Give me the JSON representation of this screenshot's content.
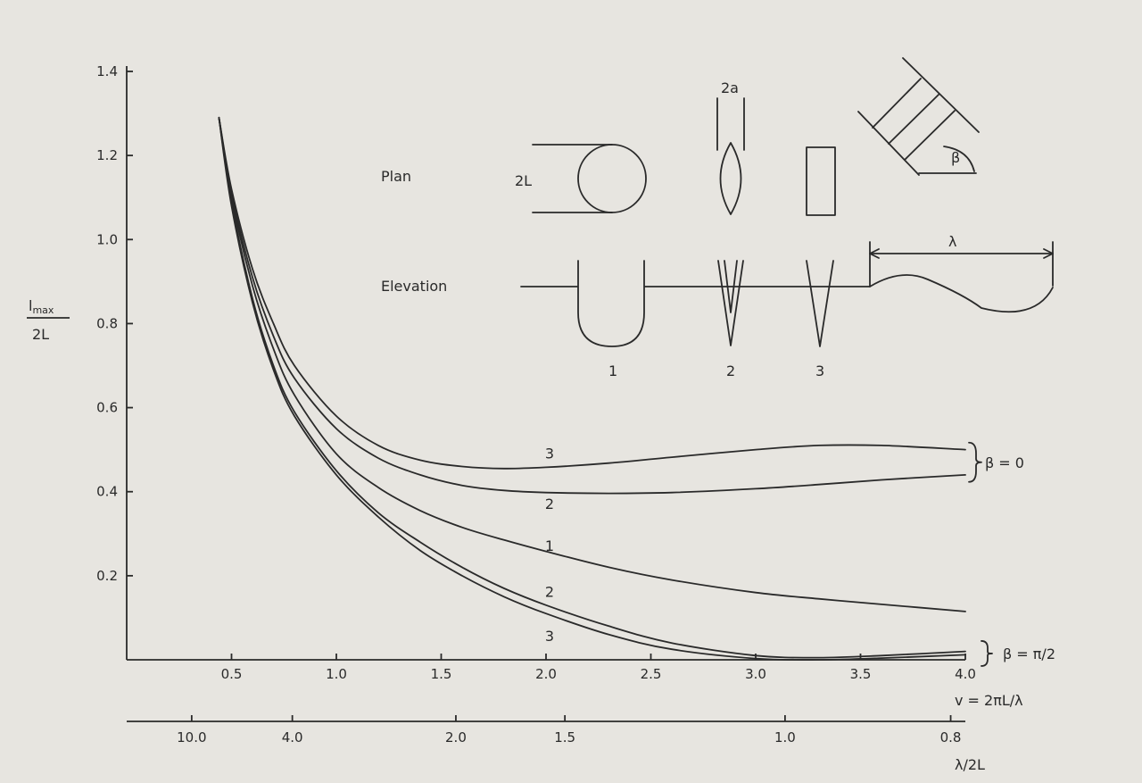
{
  "chart_data": {
    "type": "line",
    "xlabel": "v = 2πL/λ",
    "x2label": "λ/2L",
    "ylabel": "l_max / 2L",
    "ylabel_parts": {
      "num": "l",
      "sub": "max",
      "den": "2L"
    },
    "xlim": [
      0,
      4.0
    ],
    "ylim": [
      0,
      1.4
    ],
    "xticks": [
      0.5,
      1.0,
      1.5,
      2.0,
      2.5,
      3.0,
      3.5,
      4.0
    ],
    "xtick_labels": [
      "0.5",
      "1.0",
      "1.5",
      "2.0",
      "2.5",
      "3.0",
      "3.5",
      "4.0"
    ],
    "yticks": [
      0.2,
      0.4,
      0.6,
      0.8,
      1.0,
      1.2,
      1.4
    ],
    "ytick_labels": [
      "0.2",
      "0.4",
      "0.6",
      "0.8",
      "1.0",
      "1.2",
      "1.4"
    ],
    "x2ticks": [
      {
        "label": "10.0",
        "v": 0.31
      },
      {
        "label": "4.0",
        "v": 0.79
      },
      {
        "label": "2.0",
        "v": 1.57
      },
      {
        "label": "1.5",
        "v": 2.09
      },
      {
        "label": "1.0",
        "v": 3.14
      },
      {
        "label": "0.8",
        "v": 3.93
      }
    ],
    "series": [
      {
        "name": "3",
        "group": "β=0",
        "x": [
          0.44,
          0.5,
          0.6,
          0.7,
          0.8,
          1.0,
          1.2,
          1.4,
          1.6,
          1.8,
          2.0,
          2.3,
          2.6,
          3.0,
          3.3,
          3.6,
          4.0
        ],
        "y": [
          1.29,
          1.12,
          0.93,
          0.8,
          0.7,
          0.58,
          0.51,
          0.475,
          0.46,
          0.455,
          0.458,
          0.468,
          0.482,
          0.5,
          0.51,
          0.51,
          0.5
        ]
      },
      {
        "name": "2",
        "group": "β=0",
        "x": [
          0.44,
          0.5,
          0.6,
          0.7,
          0.8,
          1.0,
          1.2,
          1.4,
          1.6,
          1.8,
          2.0,
          2.3,
          2.6,
          3.0,
          3.3,
          3.6,
          4.0
        ],
        "y": [
          1.29,
          1.11,
          0.91,
          0.77,
          0.67,
          0.55,
          0.48,
          0.44,
          0.415,
          0.403,
          0.398,
          0.396,
          0.398,
          0.407,
          0.417,
          0.428,
          0.44
        ]
      },
      {
        "name": "1",
        "group": "β=π/2",
        "x": [
          0.44,
          0.5,
          0.6,
          0.7,
          0.8,
          1.0,
          1.2,
          1.4,
          1.6,
          1.8,
          2.0,
          2.3,
          2.6,
          3.0,
          3.3,
          3.6,
          4.0
        ],
        "y": [
          1.29,
          1.1,
          0.89,
          0.74,
          0.63,
          0.49,
          0.41,
          0.355,
          0.315,
          0.285,
          0.258,
          0.22,
          0.19,
          0.16,
          0.145,
          0.132,
          0.115
        ]
      },
      {
        "name": "2",
        "group": "β=π/2",
        "x": [
          0.44,
          0.5,
          0.6,
          0.7,
          0.8,
          1.0,
          1.2,
          1.4,
          1.6,
          1.8,
          2.0,
          2.3,
          2.6,
          3.0,
          3.3,
          3.6,
          4.0
        ],
        "y": [
          1.29,
          1.09,
          0.86,
          0.7,
          0.59,
          0.45,
          0.35,
          0.28,
          0.22,
          0.17,
          0.13,
          0.08,
          0.04,
          0.01,
          0.005,
          0.01,
          0.02
        ]
      },
      {
        "name": "3",
        "group": "β=π/2",
        "x": [
          0.44,
          0.5,
          0.6,
          0.7,
          0.8,
          1.0,
          1.2,
          1.4,
          1.6,
          1.8,
          2.0,
          2.3,
          2.6,
          3.0,
          3.3,
          3.6,
          4.0
        ],
        "y": [
          1.29,
          1.08,
          0.85,
          0.69,
          0.58,
          0.44,
          0.34,
          0.26,
          0.2,
          0.15,
          0.11,
          0.06,
          0.025,
          0.003,
          0.0,
          0.004,
          0.012
        ]
      }
    ],
    "series_labels": [
      {
        "text": "3",
        "x": 2.0,
        "y": 0.49
      },
      {
        "text": "2",
        "x": 2.0,
        "y": 0.37
      },
      {
        "text": "1",
        "x": 2.0,
        "y": 0.27
      },
      {
        "text": "2",
        "x": 2.0,
        "y": 0.16
      },
      {
        "text": "3",
        "x": 2.0,
        "y": 0.055
      }
    ],
    "group_labels": [
      {
        "text": "β = 0",
        "y": 0.47
      },
      {
        "text": "β = π/2",
        "y": 0.015
      }
    ],
    "legend": "none",
    "grid": false
  },
  "inset": {
    "plan_label": "Plan",
    "elevation_label": "Elevation",
    "dim_2L": "2L",
    "dim_2a": "2a",
    "dim_lambda": "λ",
    "angle_beta": "β",
    "shape_numbers": [
      "1",
      "2",
      "3"
    ]
  }
}
